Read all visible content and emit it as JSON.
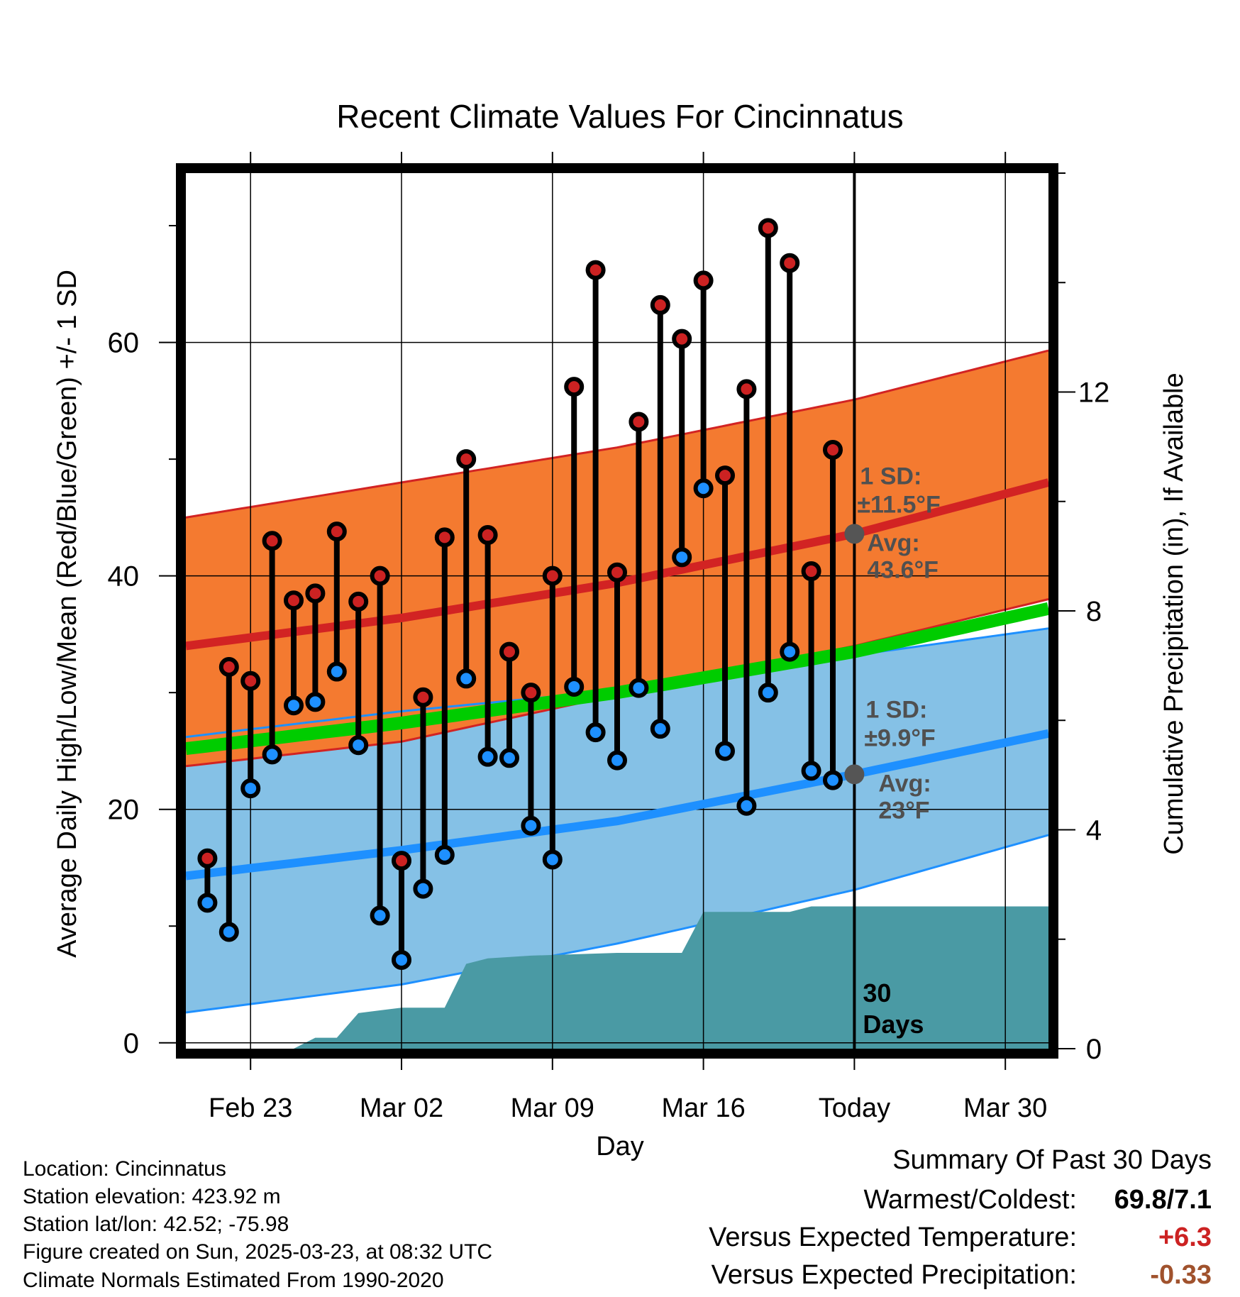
{
  "chart_data": {
    "type": "line",
    "title": "Recent Climate Values For Cincinnatus",
    "xlabel": "Day",
    "ylabel": "Average Daily High/Low/Mean (Red/Blue/Green) +/- 1 SD",
    "y2label": "Cumulative Precipitation (in), If Available",
    "ylim": [
      -0.5,
      74.5
    ],
    "y2lim": [
      0,
      16
    ],
    "xlim": [
      "2025-02-20",
      "2025-04-01"
    ],
    "yticks": [
      0,
      20,
      40,
      60
    ],
    "y2ticks": [
      0,
      4,
      8,
      12
    ],
    "xtick_dates": [
      "2025-02-23",
      "2025-03-02",
      "2025-03-09",
      "2025-03-16",
      "2025-03-23",
      "2025-03-30"
    ],
    "xtick_labels": [
      "Feb 23",
      "Mar 02",
      "Mar 09",
      "Mar 16",
      "Today",
      "Mar 30"
    ],
    "grid": true,
    "today": "2025-03-23",
    "today_label": "30\nDays",
    "daily": {
      "dates": [
        "2025-02-21",
        "2025-02-22",
        "2025-02-23",
        "2025-02-24",
        "2025-02-25",
        "2025-02-26",
        "2025-02-27",
        "2025-02-28",
        "2025-03-01",
        "2025-03-02",
        "2025-03-03",
        "2025-03-04",
        "2025-03-05",
        "2025-03-06",
        "2025-03-07",
        "2025-03-08",
        "2025-03-09",
        "2025-03-10",
        "2025-03-11",
        "2025-03-12",
        "2025-03-13",
        "2025-03-14",
        "2025-03-15",
        "2025-03-16",
        "2025-03-17",
        "2025-03-18",
        "2025-03-19",
        "2025-03-20",
        "2025-03-21",
        "2025-03-22"
      ],
      "high": [
        15.8,
        32.2,
        31.0,
        43.0,
        37.9,
        38.5,
        43.8,
        37.8,
        40.0,
        15.6,
        29.6,
        43.3,
        50.0,
        43.5,
        33.5,
        30.0,
        40.0,
        56.2,
        66.2,
        40.3,
        53.2,
        63.2,
        60.3,
        65.3,
        48.6,
        56.0,
        69.8,
        66.8,
        40.4,
        50.8
      ],
      "low": [
        12.0,
        9.5,
        21.8,
        24.7,
        28.9,
        29.2,
        31.8,
        25.5,
        10.9,
        7.1,
        13.2,
        16.1,
        31.2,
        24.5,
        24.4,
        18.6,
        15.7,
        30.5,
        26.6,
        24.2,
        30.4,
        26.9,
        41.6,
        47.5,
        25.0,
        20.3,
        30.0,
        33.5,
        23.3,
        22.5
      ]
    },
    "normals": {
      "dates": [
        "2025-02-20",
        "2025-03-02",
        "2025-03-12",
        "2025-03-23",
        "2025-04-01"
      ],
      "high_avg": [
        34.0,
        36.4,
        39.4,
        43.6,
        48.0
      ],
      "high_upper": [
        45.0,
        48.0,
        51.0,
        55.1,
        59.3
      ],
      "low_avg": [
        14.3,
        16.5,
        19.0,
        23.0,
        26.5
      ],
      "low_upper": [
        26.2,
        28.4,
        30.2,
        33.2,
        35.5
      ],
      "low_lower": [
        2.6,
        5.0,
        8.5,
        13.1,
        17.8
      ],
      "mean_avg": [
        25.2,
        27.4,
        30.0,
        33.5,
        37.2
      ],
      "high_lower": [
        23.7,
        25.8,
        29.8,
        34.0,
        38.0
      ]
    },
    "precip": {
      "dates": [
        "2025-02-20",
        "2025-02-25",
        "2025-02-26",
        "2025-02-27",
        "2025-02-28",
        "2025-03-01",
        "2025-03-02",
        "2025-03-03",
        "2025-03-04",
        "2025-03-05",
        "2025-03-06",
        "2025-03-08",
        "2025-03-12",
        "2025-03-15",
        "2025-03-16",
        "2025-03-20",
        "2025-03-21",
        "2025-04-01"
      ],
      "cumulative": [
        0,
        0,
        0.2,
        0.2,
        0.65,
        0.7,
        0.75,
        0.75,
        0.75,
        1.55,
        1.65,
        1.7,
        1.75,
        1.75,
        2.5,
        2.5,
        2.6,
        2.6
      ]
    },
    "annotations": {
      "high_sd_label": "1 SD:",
      "high_sd_value": "±11.5°F",
      "high_avg_label": "Avg:",
      "high_avg_value": "43.6°F",
      "low_sd_label": "1 SD:",
      "low_sd_value": "±9.9°F",
      "low_avg_label": "Avg:",
      "low_avg_value": "23°F"
    },
    "colors": {
      "high_band": "#f47a30",
      "high_line": "#d22323",
      "low_band": "#85c1e6",
      "low_line": "#1e90ff",
      "mean_line": "#00cc00",
      "overlap_line": "#a51818",
      "precip": "#4a9aa4",
      "high_dot": "#cc2222",
      "low_dot": "#1e90ff",
      "annotation": "#505050"
    }
  },
  "info": {
    "location": "Location: Cincinnatus",
    "elevation": "Station elevation: 423.92 m",
    "latlon": "Station lat/lon: 42.52; -75.98",
    "created": "Figure created on Sun, 2025-03-23, at 08:32 UTC",
    "normals": "Climate Normals Estimated From 1990-2020"
  },
  "summary": {
    "title": "Summary Of Past 30 Days",
    "warm_cold_label": "Warmest/Coldest:",
    "warm_cold_value": "69.8/7.1",
    "temp_label": "Versus Expected Temperature:",
    "temp_value": "+6.3",
    "temp_color": "#cc2222",
    "precip_label": "Versus Expected Precipitation:",
    "precip_value": "-0.33",
    "precip_color": "#a0522d"
  }
}
